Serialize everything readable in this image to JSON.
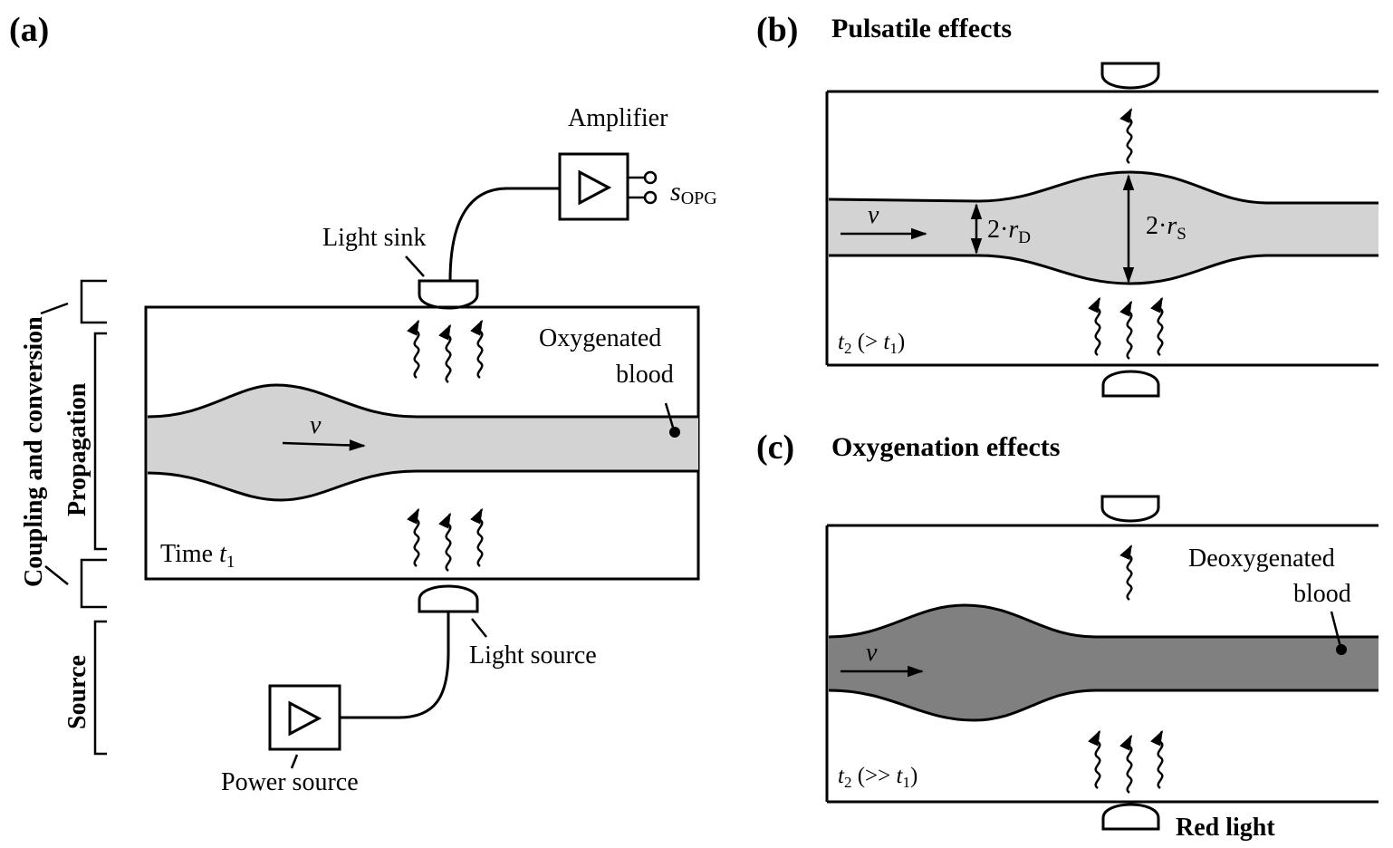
{
  "panels": {
    "a": {
      "label": "(a)",
      "amplifier": "Amplifier",
      "signal_s": "s",
      "signal_sub": "OPG",
      "light_sink": "Light sink",
      "oxygenated_line1": "Oxygenated",
      "oxygenated_line2": "blood",
      "velocity": "v",
      "time_prefix": "Time ",
      "time_t": "t",
      "time_sub": "1",
      "light_source": "Light source",
      "power_source": "Power source",
      "side_coupling": "Coupling and conversion",
      "side_propagation": "Propagation",
      "side_source": "Source"
    },
    "b": {
      "label": "(b)",
      "title": "Pulsatile effects",
      "velocity": "v",
      "rd_prefix": "2·",
      "rd_r": "r",
      "rd_sub": "D",
      "rs_prefix": "2·",
      "rs_r": "r",
      "rs_sub": "S",
      "time_t": "t",
      "time_sub": "2",
      "time_mid": " (> ",
      "time_t2": "t",
      "time_sub2": "1",
      "time_end": ")"
    },
    "c": {
      "label": "(c)",
      "title": "Oxygenation effects",
      "velocity": "v",
      "deoxy_line1": "Deoxygenated",
      "deoxy_line2": "blood",
      "time_t": "t",
      "time_sub": "2",
      "time_mid": " (>> ",
      "time_t2": "t",
      "time_sub2": "1",
      "time_end": ")",
      "red_light": "Red light"
    }
  },
  "colors": {
    "oxygenated_blood": "#d3d3d3",
    "deoxygenated_blood": "#808080",
    "line": "#000000"
  }
}
